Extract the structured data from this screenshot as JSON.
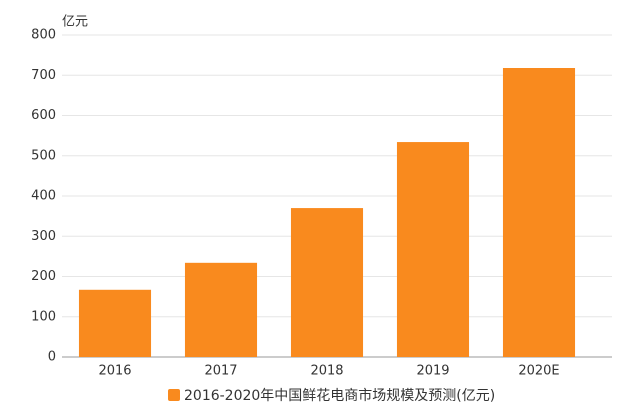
{
  "chart_data": {
    "type": "bar",
    "y_axis_label": "亿元",
    "categories": [
      "2016",
      "2017",
      "2018",
      "2019",
      "2020E"
    ],
    "series": [
      {
        "name": "2016-2020年中国鲜花电商市场规模及预测(亿元)",
        "color": "#f98a1e",
        "values": [
          167,
          234,
          370,
          534,
          718
        ]
      }
    ],
    "ylim": [
      0,
      800
    ],
    "yticks": [
      0,
      100,
      200,
      300,
      400,
      500,
      600,
      700,
      800
    ],
    "grid": true,
    "legend": "bottom"
  }
}
